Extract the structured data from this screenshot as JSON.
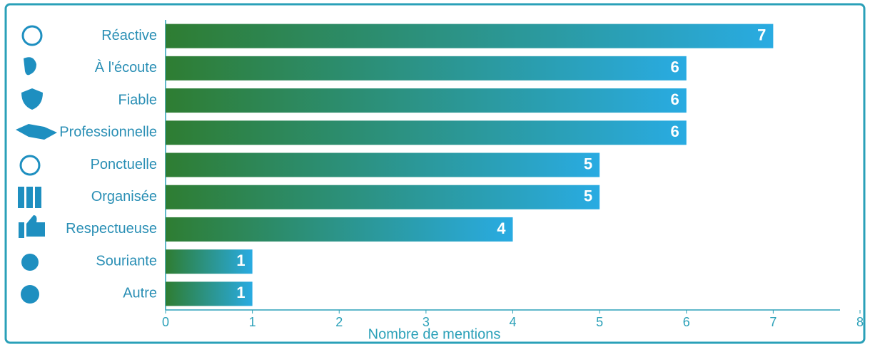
{
  "chart_data": {
    "type": "bar",
    "orientation": "horizontal",
    "categories": [
      "Réactive",
      "À l'écoute",
      "Fiable",
      "Professionnelle",
      "Ponctuelle",
      "Organisée",
      "Respectueuse",
      "Souriante",
      "Autre"
    ],
    "values": [
      7,
      6,
      6,
      6,
      5,
      5,
      4,
      1,
      1
    ],
    "color_start": "#2e7d32",
    "color_end": "#29abe2",
    "xlabel": "Nombre de mentions",
    "xlim": [
      0,
      8
    ],
    "xticks": [
      0,
      1,
      2,
      3,
      4,
      5,
      6,
      7,
      8
    ]
  }
}
